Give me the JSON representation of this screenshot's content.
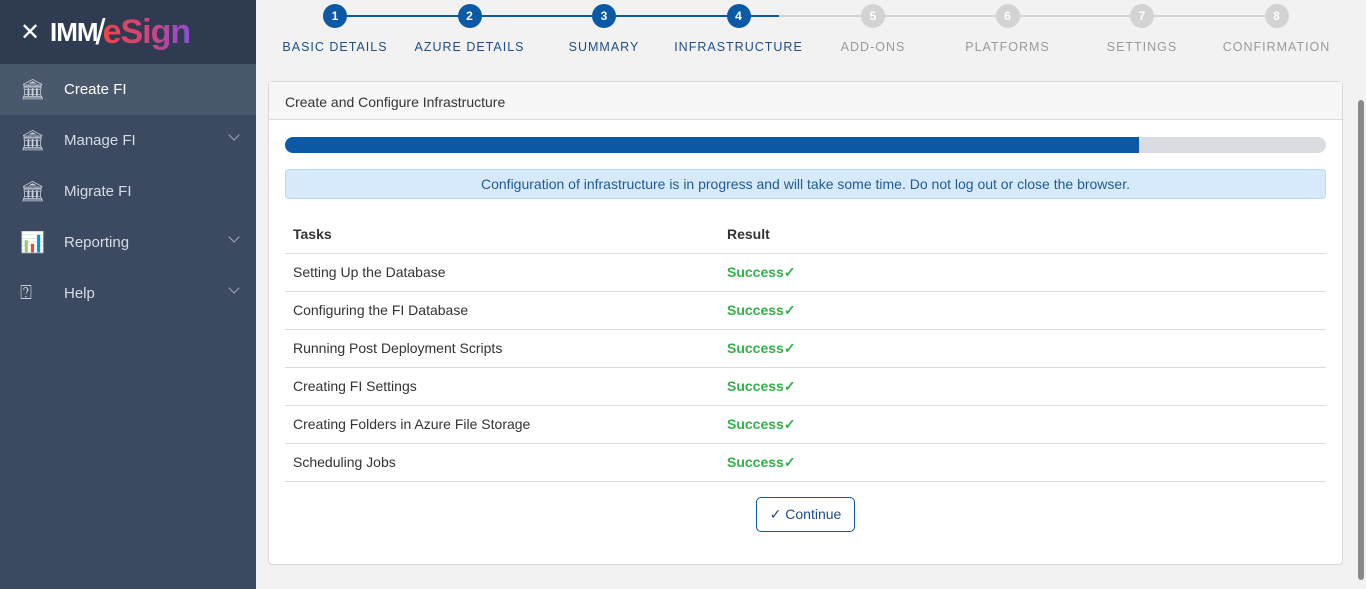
{
  "brand": {
    "prefix": "IMM",
    "suffix": "eSign"
  },
  "sidebar": {
    "items": [
      {
        "label": "Create FI",
        "icon": "bank-plus-icon",
        "active": true,
        "expandable": false
      },
      {
        "label": "Manage FI",
        "icon": "bank-gear-icon",
        "active": false,
        "expandable": true
      },
      {
        "label": "Migrate FI",
        "icon": "bank-arrow-icon",
        "active": false,
        "expandable": false
      },
      {
        "label": "Reporting",
        "icon": "bar-chart-icon",
        "active": false,
        "expandable": true
      },
      {
        "label": "Help",
        "icon": "help-bubble-icon",
        "active": false,
        "expandable": true
      }
    ]
  },
  "stepper": {
    "current": 4,
    "steps": [
      {
        "num": "1",
        "label": "BASIC DETAILS"
      },
      {
        "num": "2",
        "label": "AZURE DETAILS"
      },
      {
        "num": "3",
        "label": "SUMMARY"
      },
      {
        "num": "4",
        "label": "INFRASTRUCTURE"
      },
      {
        "num": "5",
        "label": "ADD-ONS"
      },
      {
        "num": "6",
        "label": "PLATFORMS"
      },
      {
        "num": "7",
        "label": "SETTINGS"
      },
      {
        "num": "8",
        "label": "CONFIRMATION"
      }
    ]
  },
  "card": {
    "title": "Create and Configure Infrastructure",
    "progress_percent": 82,
    "alert": "Configuration of infrastructure is in progress and will take some time. Do not log out or close the browser.",
    "columns": [
      "Tasks",
      "Result"
    ],
    "rows": [
      {
        "task": "Setting Up the Database",
        "result": "Success"
      },
      {
        "task": "Configuring the FI Database",
        "result": "Success"
      },
      {
        "task": "Running Post Deployment Scripts",
        "result": "Success"
      },
      {
        "task": "Creating FI Settings",
        "result": "Success"
      },
      {
        "task": "Creating Folders in Azure File Storage",
        "result": "Success"
      },
      {
        "task": "Scheduling Jobs",
        "result": "Success"
      }
    ],
    "continue_label": "Continue"
  },
  "colors": {
    "primary": "#0c5aa6",
    "success": "#33b04a",
    "sidebar": "#3b4a61"
  }
}
